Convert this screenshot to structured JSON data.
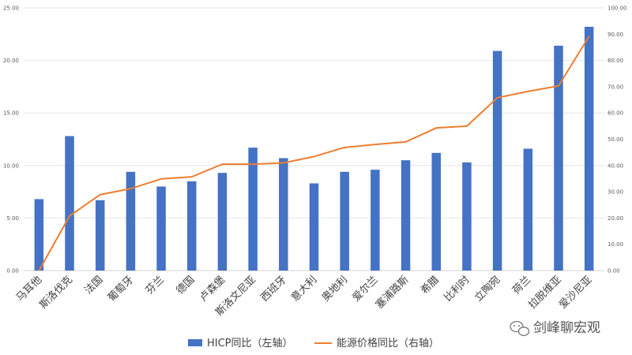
{
  "chart_data": {
    "type": "bar",
    "categories": [
      "马耳他",
      "斯洛伐克",
      "法国",
      "葡萄牙",
      "芬兰",
      "德国",
      "卢森堡",
      "斯洛文尼亚",
      "西班牙",
      "意大利",
      "奥地利",
      "爱尔兰",
      "塞浦路斯",
      "希腊",
      "比利时",
      "立陶宛",
      "荷兰",
      "拉脱维亚",
      "爱沙尼亚"
    ],
    "series": [
      {
        "name": "HICP同比（左轴）",
        "type": "bar",
        "axis": "left",
        "color": "#4472C4",
        "values": [
          6.8,
          12.8,
          6.7,
          9.4,
          8.0,
          8.5,
          9.3,
          11.7,
          10.7,
          8.3,
          9.4,
          9.6,
          10.5,
          11.2,
          10.3,
          20.9,
          11.6,
          21.4,
          23.2
        ]
      },
      {
        "name": "能源价格同比（右轴）",
        "type": "line",
        "axis": "right",
        "color": "#ED7D31",
        "values": [
          0.0,
          20.8,
          28.9,
          31.2,
          34.9,
          35.7,
          40.5,
          40.5,
          41.0,
          43.4,
          46.9,
          48.0,
          49.0,
          54.3,
          55.0,
          65.8,
          68.2,
          70.3,
          89.2
        ]
      }
    ],
    "y_left": {
      "ylim": [
        0,
        25
      ],
      "ticks": [
        "0.00",
        "5.00",
        "10.00",
        "15.00",
        "20.00",
        "25.00"
      ]
    },
    "y_right": {
      "ylim": [
        0,
        100
      ],
      "ticks": [
        "0.00",
        "10.00",
        "20.00",
        "30.00",
        "40.00",
        "50.00",
        "60.00",
        "70.00",
        "80.00",
        "90.00",
        "100.00"
      ]
    },
    "grid": true,
    "legend_position": "bottom"
  },
  "watermark": {
    "text": "剑峰聊宏观",
    "icon": "wechat-icon"
  }
}
